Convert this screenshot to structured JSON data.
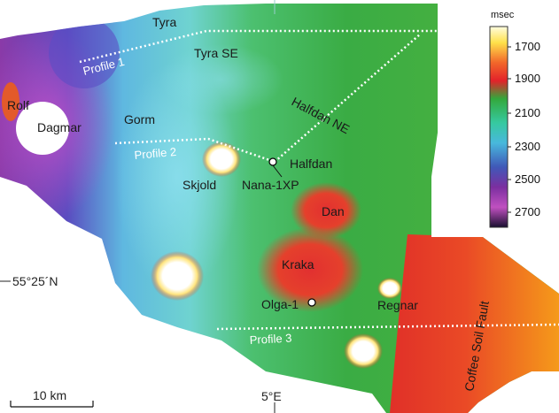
{
  "map": {
    "fields": {
      "tyra": "Tyra",
      "tyra_se": "Tyra SE",
      "gorm": "Gorm",
      "rolf": "Rolf",
      "dagmar": "Dagmar",
      "halfdan_ne": "Halfdan NE",
      "halfdan": "Halfdan",
      "skjold": "Skjold",
      "dan": "Dan",
      "kraka": "Kraka",
      "regnar": "Regnar"
    },
    "wells": {
      "nana": "Nana-1XP",
      "olga": "Olga-1"
    },
    "profiles": {
      "p1": "Profile 1",
      "p2": "Profile 2",
      "p3": "Profile 3"
    },
    "fault": "Coffee Soil Fault",
    "latitude_label": "55°25´N",
    "longitude_label": "5°E",
    "scale_bar": "10 km"
  },
  "legend": {
    "unit": "msec",
    "ticks": [
      "1700",
      "1900",
      "2100",
      "2300",
      "2500",
      "2700"
    ],
    "colors": [
      "#fffde0",
      "#ffe14a",
      "#f2672a",
      "#e3222a",
      "#33a83c",
      "#36c9a0",
      "#48b8dc",
      "#4058b8",
      "#7b2fa0",
      "#c050c0",
      "#1a1030"
    ]
  }
}
